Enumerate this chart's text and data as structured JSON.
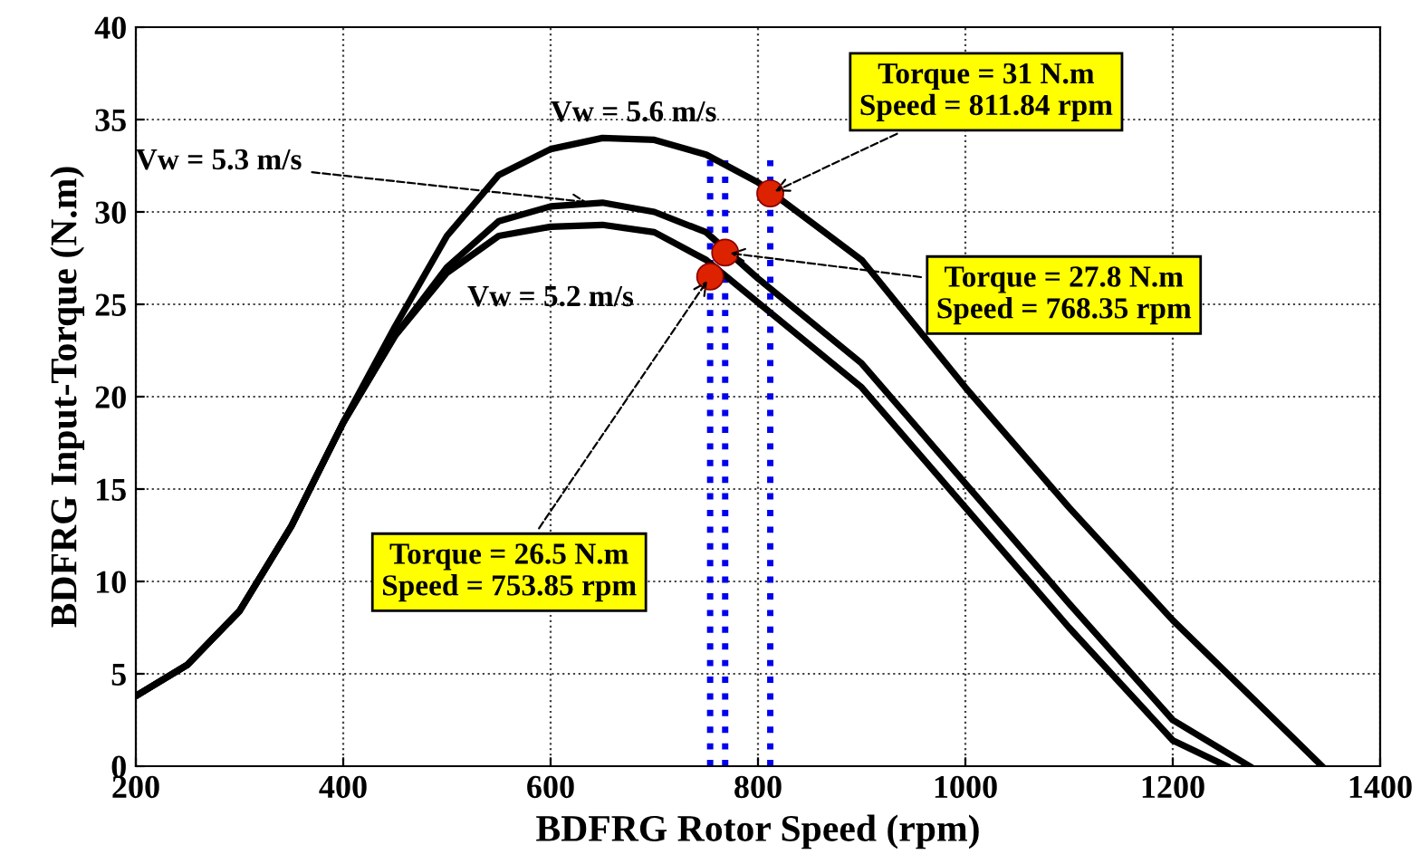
{
  "chart_data": {
    "type": "line",
    "xlabel": "BDFRG Rotor Speed (rpm)",
    "ylabel": "BDFRG Input-Torque (N.m)",
    "xlim": [
      200,
      1400
    ],
    "xticks": [
      200,
      400,
      600,
      800,
      1000,
      1200,
      1400
    ],
    "ylim": [
      0,
      40
    ],
    "yticks": [
      0,
      5,
      10,
      15,
      20,
      25,
      30,
      35,
      40
    ],
    "grid": true,
    "series": [
      {
        "color": "#000000",
        "x": [
          200,
          250,
          300,
          350,
          400,
          450,
          500,
          550,
          600,
          650,
          700,
          750,
          800,
          900,
          1000,
          1100,
          1200,
          1344
        ],
        "values": [
          3.8,
          5.5,
          8.4,
          13.0,
          18.6,
          23.8,
          28.7,
          32.0,
          33.4,
          34.0,
          33.9,
          33.1,
          31.6,
          27.4,
          20.5,
          14.0,
          7.9,
          0
        ]
      },
      {
        "color": "#000000",
        "x": [
          200,
          250,
          300,
          350,
          400,
          450,
          500,
          550,
          600,
          650,
          700,
          750,
          800,
          900,
          1000,
          1100,
          1200,
          1274
        ],
        "values": [
          3.8,
          5.5,
          8.4,
          13.0,
          18.6,
          23.3,
          27.0,
          29.5,
          30.3,
          30.5,
          30.0,
          28.9,
          26.4,
          21.8,
          15.3,
          8.8,
          2.5,
          0
        ]
      },
      {
        "color": "#000000",
        "x": [
          200,
          250,
          300,
          350,
          400,
          450,
          500,
          550,
          600,
          650,
          700,
          750,
          800,
          900,
          1000,
          1100,
          1200,
          1252
        ],
        "values": [
          3.8,
          5.5,
          8.4,
          13.0,
          18.6,
          23.3,
          26.7,
          28.7,
          29.2,
          29.3,
          28.9,
          27.4,
          25.1,
          20.5,
          14.0,
          7.5,
          1.4,
          0
        ]
      },
      {
        "type": "scatter",
        "color": "#dd2200",
        "marker": "circle",
        "x": [
          811.84,
          768.35,
          753.85
        ],
        "values": [
          31,
          27.8,
          26.5
        ]
      }
    ],
    "ref_lines": [
      {
        "axis": "x",
        "value": 753.85,
        "color": "#0000ee",
        "line_style": "dotted"
      },
      {
        "axis": "x",
        "value": 768.35,
        "color": "#0000ee",
        "line_style": "dotted"
      },
      {
        "axis": "x",
        "value": 811.84,
        "color": "#0000ee",
        "line_style": "dotted"
      }
    ],
    "annotations": [
      {
        "text": "Vw = 5.6 m/s",
        "x": 680,
        "y": 34
      },
      {
        "text": "Vw = 5.3 m/s",
        "x": 640,
        "y": 30.5
      },
      {
        "text": "Vw = 5.2 m/s",
        "x": 700,
        "y": 28.9
      },
      {
        "text": "Torque = 31 N.m\nSpeed = 811.84 rpm",
        "x": 811.84,
        "y": 31
      },
      {
        "text": "Torque = 27.8 N.m\nSpeed = 768.35 rpm",
        "x": 768.35,
        "y": 27.8
      },
      {
        "text": "Torque = 26.5 N.m\nSpeed = 753.85 rpm",
        "x": 753.85,
        "y": 26.5
      }
    ]
  }
}
